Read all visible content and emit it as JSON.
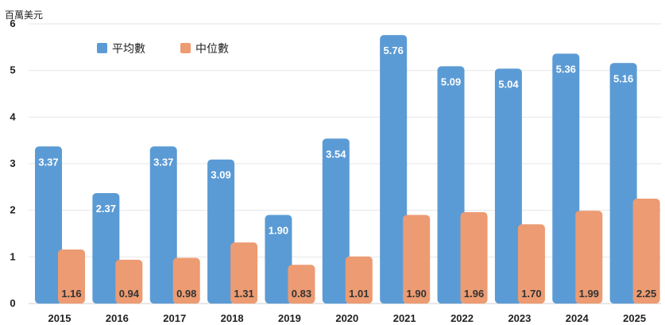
{
  "chart_data": {
    "type": "bar",
    "unit_label": "百萬美元",
    "categories": [
      "2015",
      "2016",
      "2017",
      "2018",
      "2019",
      "2020",
      "2021",
      "2022",
      "2023",
      "2024",
      "2025"
    ],
    "series": [
      {
        "name": "平均數",
        "color": "#5b9bd5",
        "values": [
          3.37,
          2.37,
          3.37,
          3.09,
          1.9,
          3.54,
          5.76,
          5.09,
          5.04,
          5.36,
          5.16
        ],
        "labels": [
          "3.37",
          "2.37",
          "3.37",
          "3.09",
          "1.90",
          "3.54",
          "5.76",
          "5.09",
          "5.04",
          "5.36",
          "5.16"
        ]
      },
      {
        "name": "中位數",
        "color": "#ec9b72",
        "values": [
          1.16,
          0.94,
          0.98,
          1.31,
          0.83,
          1.01,
          1.9,
          1.96,
          1.7,
          1.99,
          2.25
        ],
        "labels": [
          "1.16",
          "0.94",
          "0.98",
          "1.31",
          "0.83",
          "1.01",
          "1.90",
          "1.96",
          "1.70",
          "1.99",
          "2.25"
        ]
      }
    ],
    "ylim": [
      0,
      6
    ],
    "yticks": [
      "0",
      "1",
      "2",
      "3",
      "4",
      "5",
      "6"
    ],
    "grid": true,
    "legend_position": "top-left"
  }
}
